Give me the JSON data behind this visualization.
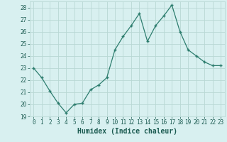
{
  "x": [
    0,
    1,
    2,
    3,
    4,
    5,
    6,
    7,
    8,
    9,
    10,
    11,
    12,
    13,
    14,
    15,
    16,
    17,
    18,
    19,
    20,
    21,
    22,
    23
  ],
  "y": [
    23.0,
    22.2,
    21.1,
    20.1,
    19.3,
    20.0,
    20.1,
    21.2,
    21.6,
    22.2,
    24.5,
    25.6,
    26.5,
    27.5,
    25.2,
    26.5,
    27.3,
    28.2,
    26.0,
    24.5,
    24.0,
    23.5,
    23.2,
    23.2
  ],
  "line_color": "#2d7d6e",
  "marker": "+",
  "marker_size": 3.5,
  "marker_lw": 1.0,
  "line_width": 0.9,
  "bg_color": "#d8f0f0",
  "grid_color": "#b8d8d4",
  "xlabel": "Humidex (Indice chaleur)",
  "xlim": [
    -0.5,
    23.5
  ],
  "ylim": [
    19,
    28.5
  ],
  "yticks": [
    19,
    20,
    21,
    22,
    23,
    24,
    25,
    26,
    27,
    28
  ],
  "xticks": [
    0,
    1,
    2,
    3,
    4,
    5,
    6,
    7,
    8,
    9,
    10,
    11,
    12,
    13,
    14,
    15,
    16,
    17,
    18,
    19,
    20,
    21,
    22,
    23
  ],
  "tick_fontsize": 5.5,
  "xlabel_fontsize": 7.0,
  "label_color": "#1a5a50"
}
